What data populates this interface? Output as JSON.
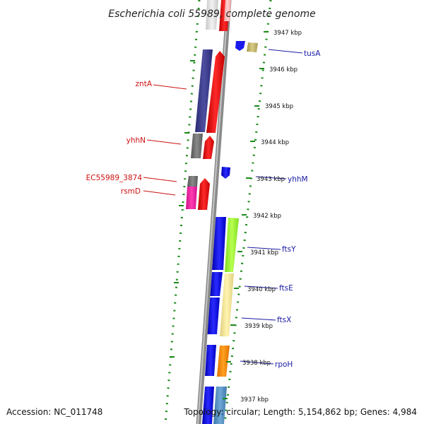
{
  "title": "Escherichia coli 55989, complete genome",
  "footer": {
    "accession": "Accession: NC_011748",
    "summary": "Topology: circular; Length: 5,154,862 bp; Genes: 4,984"
  },
  "ticks": [
    "3947 kbp",
    "3946 kbp",
    "3945 kbp",
    "3944 kbp",
    "3943 kbp",
    "3942 kbp",
    "3941 kbp",
    "3940 kbp",
    "3939 kbp",
    "3938 kbp",
    "3937 kbp"
  ],
  "genes_reverse": [
    "zntA",
    "yhhN",
    "EC55989_3874",
    "rsmD"
  ],
  "genes_forward": [
    "tusA",
    "yhhM",
    "ftsY",
    "ftsE",
    "ftsX",
    "rpoH"
  ],
  "colors": {
    "forward_strand": "#ee1111",
    "reverse_strand": "#1111ee",
    "backbone": "#888888",
    "dots": "#1a8a1a",
    "left_label": "#cc1111",
    "right_label": "#1a1aa6"
  }
}
